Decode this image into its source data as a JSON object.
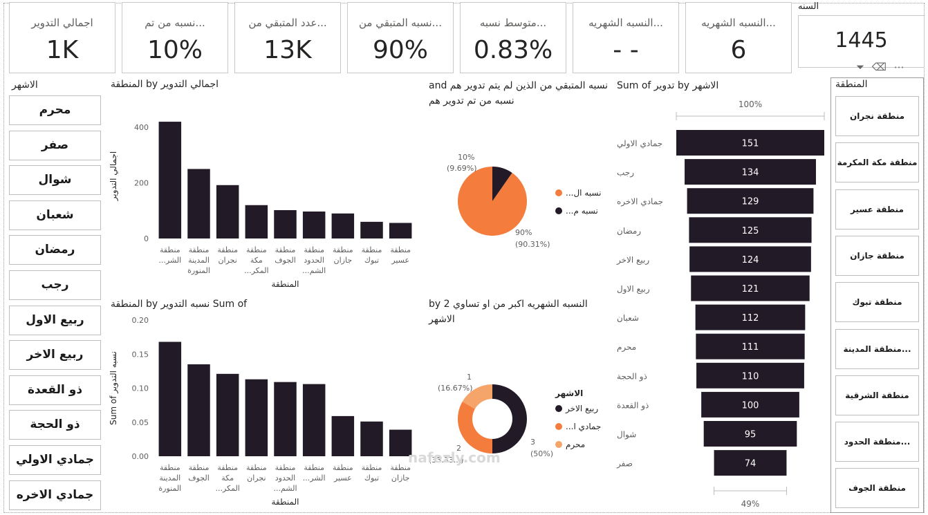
{
  "kpis": [
    {
      "title": "اجمالي التدوير",
      "value": "1K"
    },
    {
      "title": "...نسبه من تم",
      "value": "10%"
    },
    {
      "title": "...عدد المتبقي من",
      "value": "13K"
    },
    {
      "title": "...نسبه المتبقي من",
      "value": "90%"
    },
    {
      "title": "...متوسط نسبه",
      "value": "0.83%"
    },
    {
      "title": "...النسبه الشهريه",
      "value": "- -"
    },
    {
      "title": "...النسبه الشهريه",
      "value": "6"
    }
  ],
  "year": {
    "label": "السنه",
    "value": "1445"
  },
  "months_slicer": {
    "title": "الاشهر",
    "items": [
      "محرم",
      "صفر",
      "شوال",
      "شعبان",
      "رمضان",
      "رجب",
      "ربيع الاول",
      "ربيع الاخر",
      "ذو القعدة",
      "ذو الحجة",
      "جمادي الاولي",
      "جمادي الاخره"
    ]
  },
  "region_slicer": {
    "title": "المنطقة",
    "items": [
      "منطقة نجران",
      "منطقة مكة المكرمة",
      "منطقة عسير",
      "منطقة جازان",
      "منطقة تبوك",
      "...منطقة المدينة",
      "منطقة الشرقية",
      "...منطقة الحدود",
      "منطقة الجوف"
    ]
  },
  "bar1": {
    "title": "المنطقة by اجمالي التدوير",
    "ylabel": "اجمالي التدوير",
    "xlabel": "المنطقة",
    "chart_data": {
      "type": "bar",
      "categories": [
        [
          "منطقة",
          "...الشر"
        ],
        [
          "منطقة",
          "المدينة",
          "المنورة"
        ],
        [
          "منطقة",
          "نجران"
        ],
        [
          "منطقة",
          "مكة",
          "...المكر"
        ],
        [
          "منطقة",
          "الجوف"
        ],
        [
          "منطقة",
          "الحدود",
          "...الشم"
        ],
        [
          "منطقة",
          "جازان"
        ],
        [
          "منطقة",
          "تبوك"
        ],
        [
          "منطقة",
          "عسير"
        ]
      ],
      "values": [
        420,
        250,
        192,
        120,
        102,
        97,
        90,
        60,
        56
      ],
      "yticks": [
        "0",
        "200",
        "400"
      ],
      "ylim": [
        0,
        450
      ]
    }
  },
  "bar2": {
    "title": "المنطقة by نسبه التدوير Sum of",
    "ylabel": "Sum of نسبه التدوير",
    "xlabel": "المنطقة",
    "chart_data": {
      "type": "bar",
      "categories": [
        [
          "منطقة",
          "المدينة",
          "المنورة"
        ],
        [
          "منطقة",
          "الجوف"
        ],
        [
          "منطقة",
          "مكة",
          "...المكر"
        ],
        [
          "منطقة",
          "نجران"
        ],
        [
          "منطقة",
          "الحدود",
          "...الشم"
        ],
        [
          "منطقة",
          "...الشر"
        ],
        [
          "منطقة",
          "عسير"
        ],
        [
          "منطقة",
          "تبوك"
        ],
        [
          "منطقة",
          "جازان"
        ]
      ],
      "values": [
        0.168,
        0.135,
        0.121,
        0.113,
        0.109,
        0.106,
        0.059,
        0.051,
        0.039
      ],
      "yticks": [
        "0.00",
        "0.05",
        "0.10",
        "0.15",
        "0.20"
      ],
      "ylim": [
        0,
        0.2
      ]
    }
  },
  "pie": {
    "title_line1": "and نسبه المتبقي من الذين لم يتم تدوير هم",
    "title_line2": "نسبه من تم تدوير هم",
    "legend": [
      "...نسبه ال",
      "...نسبه م"
    ],
    "colors": [
      "#f47c3c",
      "#221a26"
    ],
    "labels": [
      [
        "90%",
        "(90.31%)"
      ],
      [
        "10%",
        "(9.69%)"
      ]
    ],
    "chart_data": {
      "type": "pie",
      "values": [
        90.31,
        9.69
      ]
    }
  },
  "donut": {
    "title_line1": "by النسبه الشهريه اكبر من او تساوي 2",
    "title_line2": "الاشهر",
    "legend_title": "الاشهر",
    "legend": [
      "ربيع الاخر",
      "...جمادي ا",
      "محرم"
    ],
    "colors": [
      "#221a26",
      "#f47c3c",
      "#f5a46a"
    ],
    "labels": [
      [
        "3",
        "(50%)"
      ],
      [
        "2",
        "(33.33...)"
      ],
      [
        "1",
        "(16.67%)"
      ]
    ],
    "chart_data": {
      "type": "pie",
      "values": [
        3,
        2,
        1
      ]
    }
  },
  "funnel": {
    "title": "Sum of تدوير by الاشهر",
    "top_label": "100%",
    "bottom_label": "49%",
    "chart_data": {
      "type": "bar",
      "categories": [
        "جمادي الاولي",
        "رجب",
        "جمادي الاخره",
        "رمضان",
        "ربيع الاخر",
        "ربيع الاول",
        "شعبان",
        "محرم",
        "ذو الحجة",
        "ذو القعدة",
        "شوال",
        "صفر"
      ],
      "values": [
        151,
        134,
        129,
        125,
        124,
        121,
        112,
        111,
        110,
        100,
        95,
        74
      ]
    }
  },
  "watermark": "nafezly.com",
  "colors": {
    "bar": "#221a26",
    "axis_text": "#605e5c",
    "grid": "#e6e6e6"
  }
}
